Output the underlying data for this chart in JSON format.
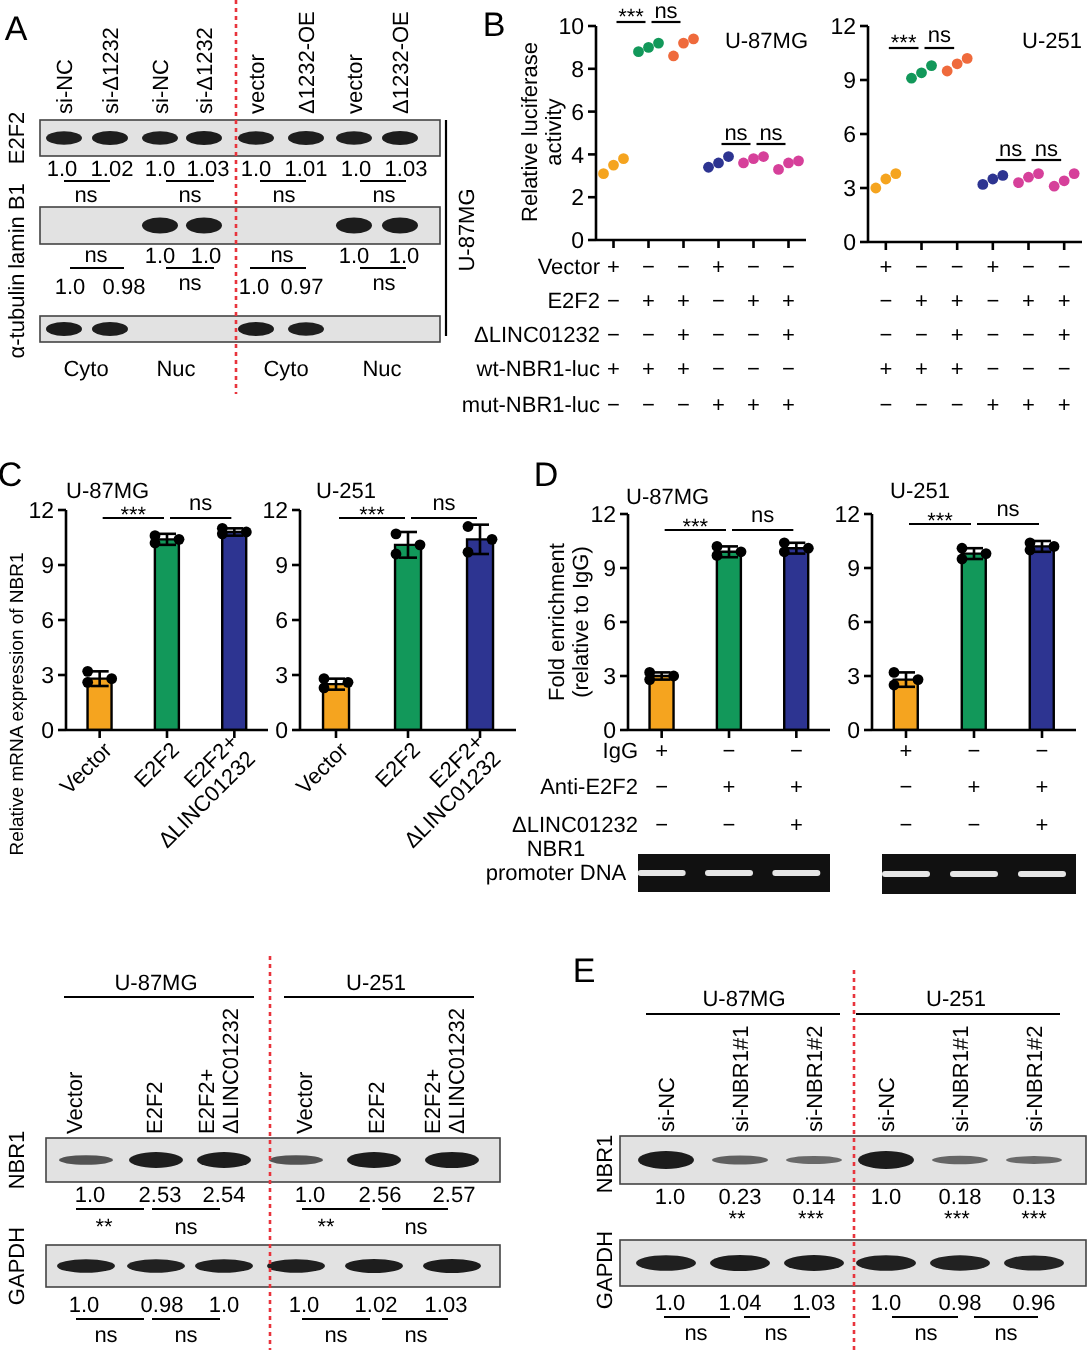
{
  "chart_data": [
    {
      "type": "other",
      "categories": [
        "si-NC",
        "si-Δ1232",
        "si-NC",
        "si-Δ1232",
        "vector",
        "Δ1232-OE",
        "vector",
        "Δ1232-OE"
      ],
      "series": [
        {
          "name": "E2F2",
          "values": [
            1.0,
            1.02,
            1.0,
            1.03,
            1.0,
            1.01,
            1.0,
            1.03
          ],
          "value_labels": [
            "1.0",
            "1.02",
            "1.0",
            "1.03",
            "1.0",
            "1.01",
            "1.0",
            "1.03"
          ]
        },
        {
          "name": "lamin B1",
          "values": [
            null,
            null,
            1.0,
            1.0,
            null,
            null,
            1.0,
            1.0
          ],
          "value_labels": [
            null,
            null,
            "1.0",
            "1.0",
            null,
            null,
            "1.0",
            "1.0"
          ]
        },
        {
          "name": "α-tubulin",
          "values": [
            1.0,
            0.98,
            null,
            null,
            1.0,
            0.97,
            null,
            null
          ],
          "value_labels": [
            "1.0",
            "0.98",
            null,
            null,
            "1.0",
            "0.97",
            null,
            null
          ]
        }
      ],
      "annotations": [
        "A",
        "ns",
        "ns",
        "ns",
        "ns",
        "ns",
        "ns",
        "ns",
        "ns",
        "Cyto",
        "Nuc",
        "Cyto",
        "Nuc",
        "U-87MG"
      ]
    },
    {
      "type": "scatter",
      "title": "U-87MG",
      "ylabel": "Relative luciferase activity",
      "categories": [
        null,
        null,
        null,
        null,
        null,
        null
      ],
      "ylim": [
        0,
        10
      ],
      "yticks": [
        0,
        2,
        4,
        6,
        8,
        10
      ],
      "tick_labels": "y",
      "marker": "circle",
      "series": [
        {
          "colors": [
            "#f5a41f",
            "#12985a",
            "#ef6a3c",
            "#2d3491",
            "#d6409a",
            "#d6409a"
          ],
          "values": [
            3.1,
            8.8,
            8.6,
            3.4,
            3.6,
            3.3
          ]
        },
        {
          "colors": [
            "#f5a41f",
            "#12985a",
            "#ef6a3c",
            "#2d3491",
            "#d6409a",
            "#d6409a"
          ],
          "values": [
            3.5,
            9.0,
            9.2,
            3.6,
            3.8,
            3.6
          ]
        },
        {
          "colors": [
            "#f5a41f",
            "#12985a",
            "#ef6a3c",
            "#2d3491",
            "#d6409a",
            "#d6409a"
          ],
          "values": [
            3.8,
            9.2,
            9.4,
            3.9,
            3.9,
            3.7
          ]
        }
      ],
      "annotations": [
        "B",
        "***",
        "ns",
        "ns",
        "ns",
        "Vector",
        "+",
        "−",
        "−",
        "+",
        "−",
        "−",
        "E2F2",
        "−",
        "+",
        "+",
        "−",
        "+",
        "+",
        "ΔLINC01232",
        "−",
        "−",
        "+",
        "−",
        "−",
        "+",
        "wt-NBR1-luc",
        "+",
        "+",
        "+",
        "−",
        "−",
        "−",
        "mut-NBR1-luc",
        "−",
        "−",
        "−",
        "+",
        "+",
        "+"
      ]
    },
    {
      "type": "scatter",
      "title": "U-251",
      "categories": [
        null,
        null,
        null,
        null,
        null,
        null
      ],
      "ylim": [
        0,
        12
      ],
      "yticks": [
        0,
        3,
        6,
        9,
        12
      ],
      "tick_labels": "y",
      "marker": "circle",
      "series": [
        {
          "colors": [
            "#f5a41f",
            "#12985a",
            "#ef6a3c",
            "#2d3491",
            "#d6409a",
            "#d6409a"
          ],
          "values": [
            3.0,
            9.1,
            9.5,
            3.2,
            3.3,
            3.1
          ]
        },
        {
          "colors": [
            "#f5a41f",
            "#12985a",
            "#ef6a3c",
            "#2d3491",
            "#d6409a",
            "#d6409a"
          ],
          "values": [
            3.5,
            9.4,
            9.9,
            3.5,
            3.6,
            3.4
          ]
        },
        {
          "colors": [
            "#f5a41f",
            "#12985a",
            "#ef6a3c",
            "#2d3491",
            "#d6409a",
            "#d6409a"
          ],
          "values": [
            3.8,
            9.8,
            10.2,
            3.7,
            3.8,
            3.8
          ]
        }
      ],
      "annotations": [
        "***",
        "ns",
        "ns",
        "ns",
        "+",
        "−",
        "−",
        "+",
        "−",
        "−",
        "−",
        "+",
        "+",
        "−",
        "+",
        "+",
        "−",
        "−",
        "+",
        "−",
        "−",
        "+",
        "+",
        "+",
        "+",
        "−",
        "−",
        "−",
        "−",
        "−",
        "−",
        "+",
        "+",
        "+"
      ]
    },
    {
      "type": "bar",
      "title": "U-87MG",
      "ylabel": "Relative mRNA expression of NBR1",
      "categories": [
        "Vector",
        "E2F2",
        "E2F2+ ΔLINC01232"
      ],
      "ylim": [
        0,
        12
      ],
      "yticks": [
        0,
        3,
        6,
        9,
        12
      ],
      "marker": "circle",
      "series": [
        {
          "colors": [
            "#f5a41f",
            "#12985a",
            "#2d3491"
          ],
          "values": [
            2.8,
            10.4,
            10.8
          ],
          "errors": [
            0.4,
            0.3,
            0.2
          ]
        },
        {
          "type": "scatter",
          "color": "#000000",
          "values": [
            2.6,
            10.2,
            10.7
          ]
        },
        {
          "type": "scatter",
          "color": "#000000",
          "values": [
            2.8,
            10.4,
            10.8
          ]
        },
        {
          "type": "scatter",
          "color": "#000000",
          "values": [
            3.2,
            10.6,
            11.0
          ]
        }
      ],
      "annotations": [
        "C",
        "***",
        "ns"
      ]
    },
    {
      "type": "bar",
      "title": "U-251",
      "categories": [
        "Vector",
        "E2F2",
        "E2F2+ ΔLINC01232"
      ],
      "ylim": [
        0,
        12
      ],
      "yticks": [
        0,
        3,
        6,
        9,
        12
      ],
      "marker": "circle",
      "series": [
        {
          "colors": [
            "#f5a41f",
            "#12985a",
            "#2d3491"
          ],
          "values": [
            2.5,
            10.1,
            10.4
          ],
          "errors": [
            0.3,
            0.7,
            0.8
          ]
        },
        {
          "type": "scatter",
          "color": "#000000",
          "values": [
            2.3,
            9.6,
            9.7
          ]
        },
        {
          "type": "scatter",
          "color": "#000000",
          "values": [
            2.6,
            10.1,
            10.4
          ]
        },
        {
          "type": "scatter",
          "color": "#000000",
          "values": [
            2.8,
            10.7,
            11.1
          ]
        }
      ],
      "annotations": [
        "***",
        "ns"
      ]
    },
    {
      "type": "bar",
      "title": "U-87MG",
      "ylabel": "Fold enrichment (relative to IgG)",
      "categories": [
        null,
        null,
        null
      ],
      "tick_labels": "y",
      "ylim": [
        0,
        12
      ],
      "yticks": [
        0,
        3,
        6,
        9,
        12
      ],
      "marker": "circle",
      "series": [
        {
          "colors": [
            "#f5a41f",
            "#12985a",
            "#2d3491"
          ],
          "values": [
            3.0,
            9.9,
            10.1
          ],
          "errors": [
            0.2,
            0.3,
            0.3
          ]
        },
        {
          "type": "scatter",
          "color": "#000000",
          "values": [
            2.8,
            9.7,
            9.9
          ]
        },
        {
          "type": "scatter",
          "color": "#000000",
          "values": [
            3.0,
            9.9,
            10.1
          ]
        },
        {
          "type": "scatter",
          "color": "#000000",
          "values": [
            3.2,
            10.2,
            10.4
          ]
        }
      ],
      "annotations": [
        "D",
        "***",
        "ns",
        "IgG",
        "+",
        "−",
        "−",
        "Anti-E2F2",
        "−",
        "+",
        "+",
        "ΔLINC01232",
        "−",
        "−",
        "+",
        "NBR1 promoter DNA"
      ]
    },
    {
      "type": "bar",
      "title": "U-251",
      "categories": [
        null,
        null,
        null
      ],
      "tick_labels": "y",
      "ylim": [
        0,
        12
      ],
      "yticks": [
        0,
        3,
        6,
        9,
        12
      ],
      "marker": "circle",
      "series": [
        {
          "colors": [
            "#f5a41f",
            "#12985a",
            "#2d3491"
          ],
          "values": [
            2.8,
            9.8,
            10.2
          ],
          "errors": [
            0.4,
            0.3,
            0.3
          ]
        },
        {
          "type": "scatter",
          "color": "#000000",
          "values": [
            2.5,
            9.5,
            10.0
          ]
        },
        {
          "type": "scatter",
          "color": "#000000",
          "values": [
            2.8,
            9.8,
            10.2
          ]
        },
        {
          "type": "scatter",
          "color": "#000000",
          "values": [
            3.2,
            10.1,
            10.4
          ]
        }
      ],
      "annotations": [
        "***",
        "ns",
        "+",
        "−",
        "−",
        "−",
        "+",
        "+",
        "−",
        "−",
        "+"
      ]
    },
    {
      "type": "other",
      "categories": [
        "Vector",
        "E2F2",
        "E2F2+ ΔLINC01232",
        "Vector",
        "E2F2",
        "E2F2+ ΔLINC01232"
      ],
      "series": [
        {
          "name": "NBR1",
          "values": [
            1.0,
            2.53,
            2.54,
            1.0,
            2.56,
            2.57
          ],
          "value_labels": [
            "1.0",
            "2.53",
            "2.54",
            "1.0",
            "2.56",
            "2.57"
          ]
        },
        {
          "name": "GAPDH",
          "values": [
            1.0,
            0.98,
            1.0,
            1.0,
            1.02,
            1.03
          ],
          "value_labels": [
            "1.0",
            "0.98",
            "1.0",
            "1.0",
            "1.02",
            "1.03"
          ]
        }
      ],
      "annotations": [
        "U-87MG",
        "U-251",
        "**",
        "ns",
        "**",
        "ns",
        "ns",
        "ns",
        "ns",
        "ns"
      ]
    },
    {
      "type": "other",
      "categories": [
        "si-NC",
        "si-NBR1#1",
        "si-NBR1#2",
        "si-NC",
        "si-NBR1#1",
        "si-NBR1#2"
      ],
      "series": [
        {
          "name": "NBR1",
          "values": [
            1.0,
            0.23,
            0.14,
            1.0,
            0.18,
            0.13
          ],
          "value_labels": [
            "1.0",
            "0.23",
            "0.14",
            "1.0",
            "0.18",
            "0.13"
          ]
        },
        {
          "name": "GAPDH",
          "values": [
            1.0,
            1.04,
            1.03,
            1.0,
            0.98,
            0.96
          ],
          "value_labels": [
            "1.0",
            "1.04",
            "1.03",
            "1.0",
            "0.98",
            "0.96"
          ]
        }
      ],
      "annotations": [
        "E",
        "U-87MG",
        "U-251",
        "** *** *** ***",
        "ns",
        "ns",
        "ns",
        "ns"
      ]
    }
  ]
}
